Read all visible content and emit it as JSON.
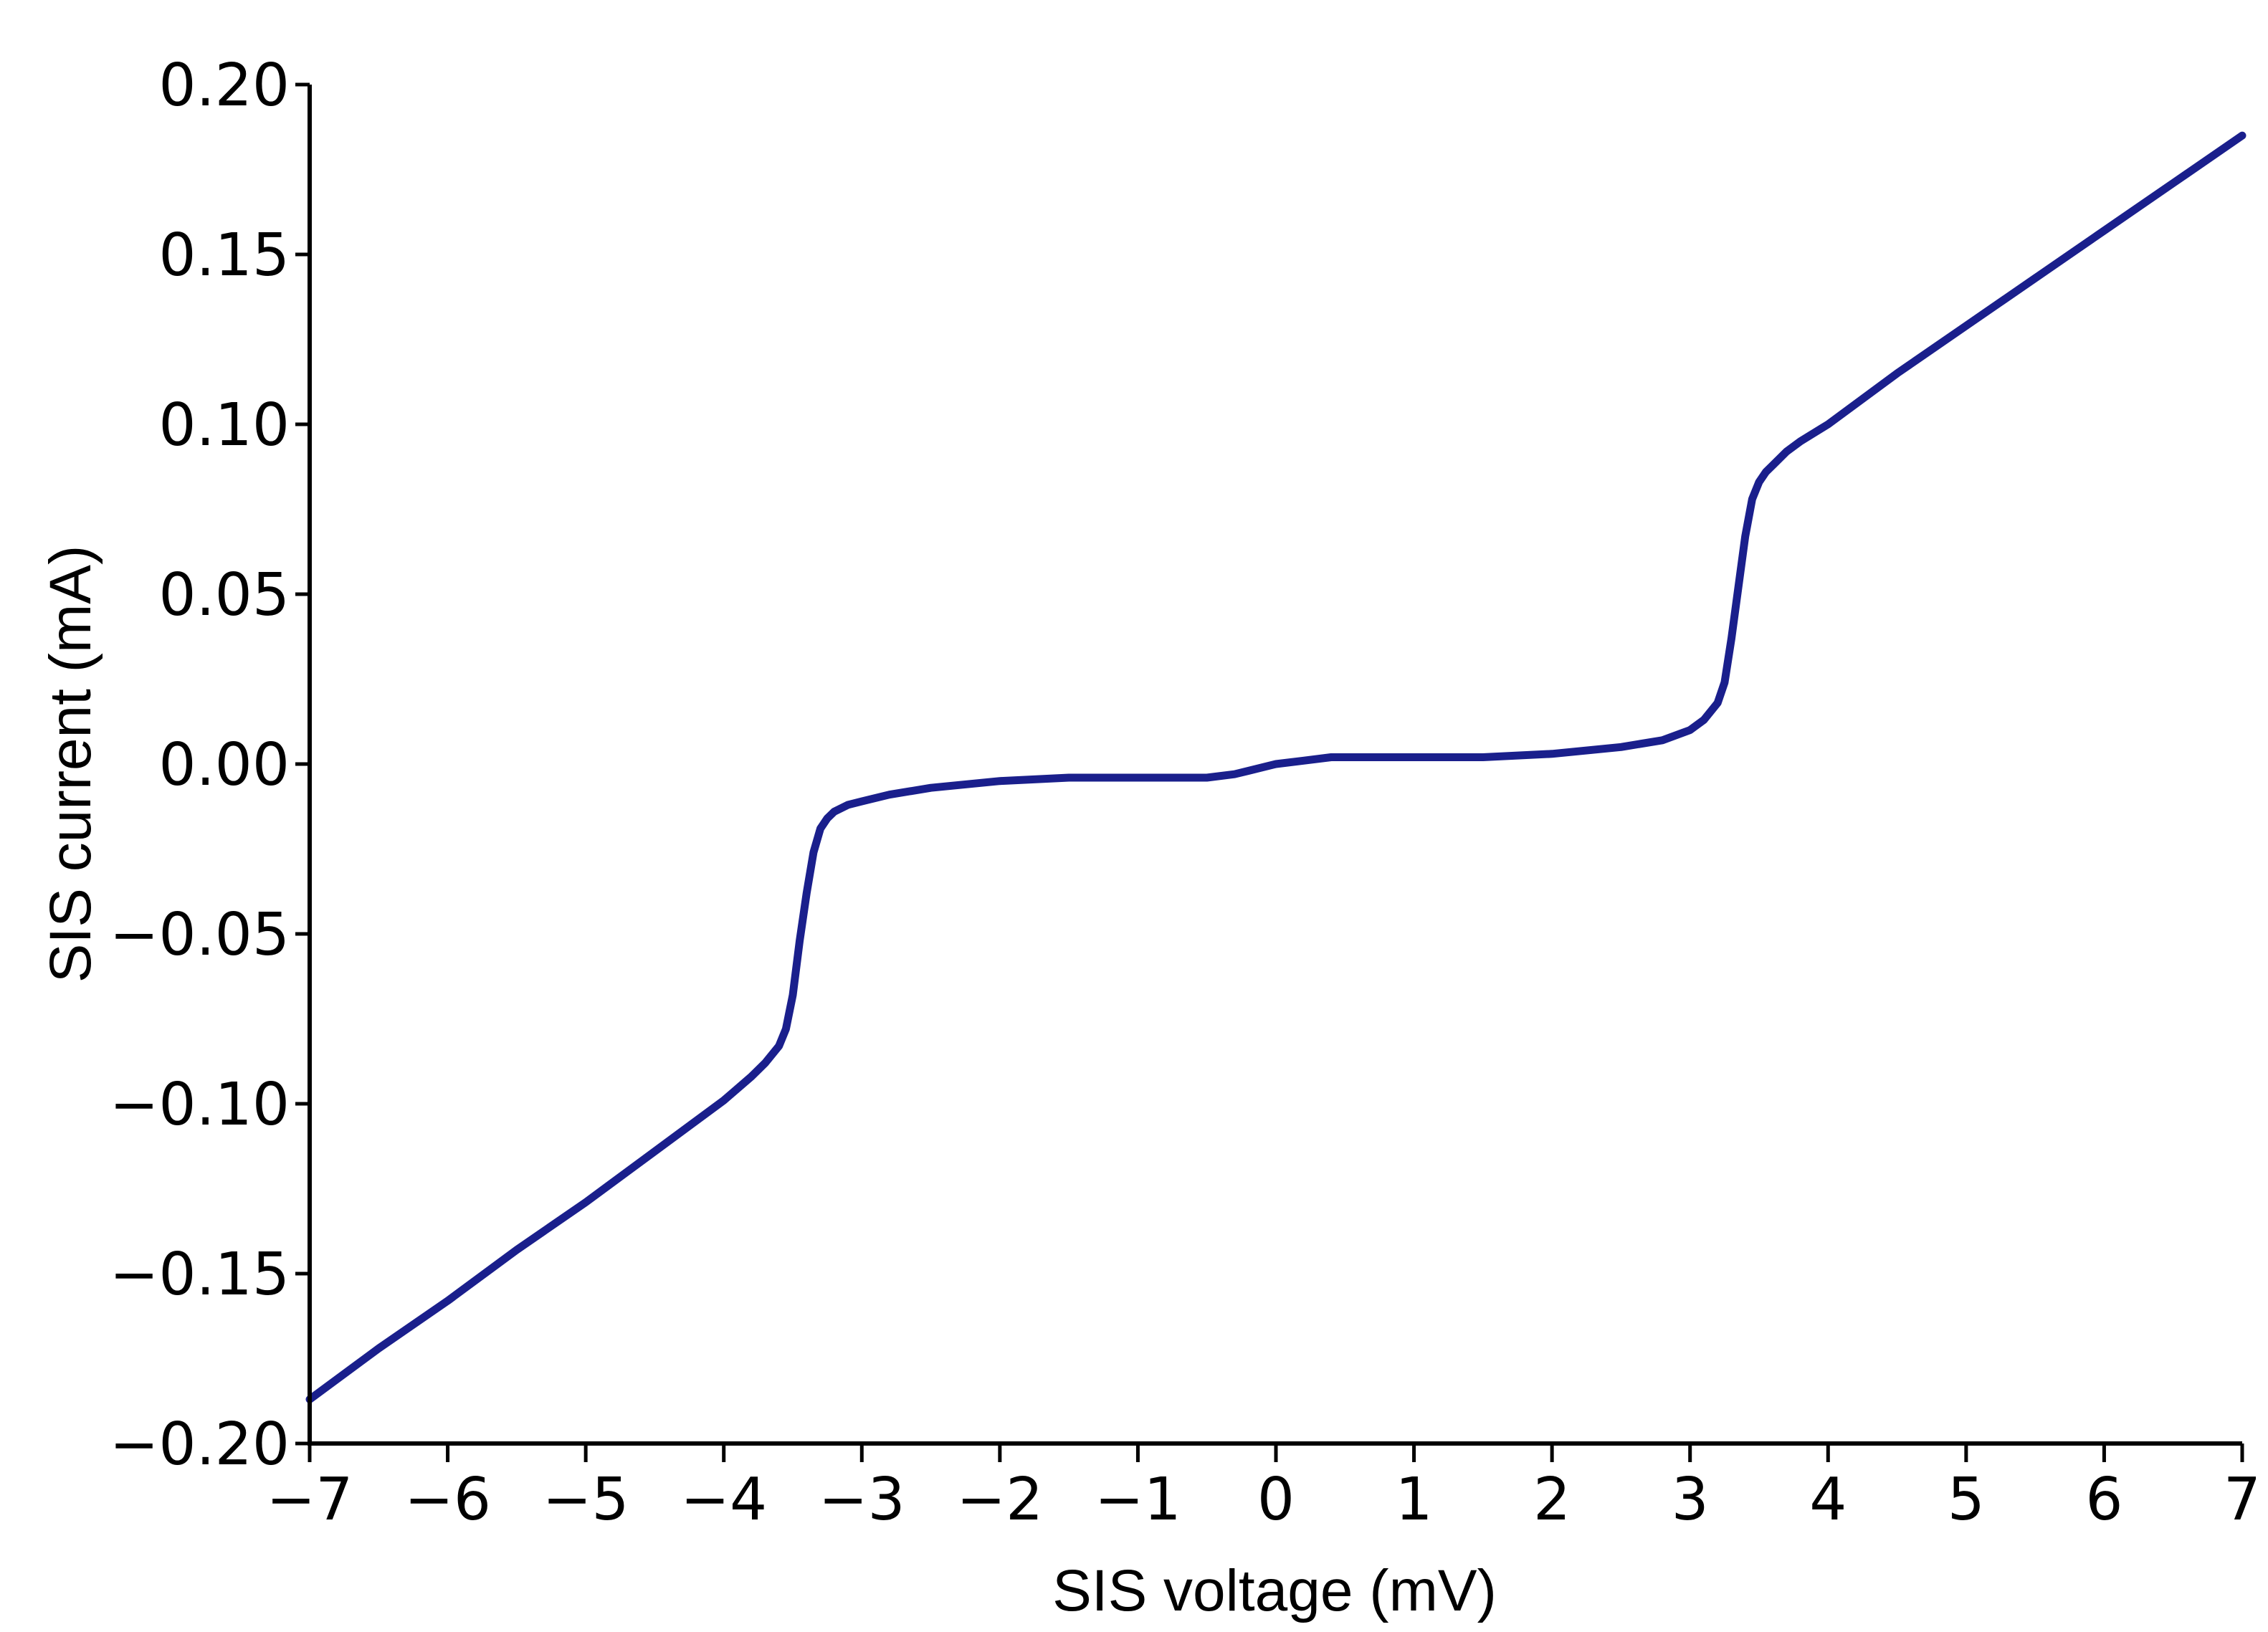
{
  "chart_data": {
    "type": "line",
    "title": "",
    "xlabel": "SIS voltage (mV)",
    "ylabel": "SIS current (mA)",
    "xlim": [
      -7,
      7
    ],
    "ylim": [
      -0.2,
      0.2
    ],
    "x_ticks": [
      -7,
      -6,
      -5,
      -4,
      -3,
      -2,
      -1,
      0,
      1,
      2,
      3,
      4,
      5,
      6,
      7
    ],
    "x_tick_labels": [
      "−7",
      "−6",
      "−5",
      "−4",
      "−3",
      "−2",
      "−1",
      "0",
      "1",
      "2",
      "3",
      "4",
      "5",
      "6",
      "7"
    ],
    "y_ticks": [
      -0.2,
      -0.15,
      -0.1,
      -0.05,
      0.0,
      0.05,
      0.1,
      0.15,
      0.2
    ],
    "y_tick_labels": [
      "−0.20",
      "−0.15",
      "−0.10",
      "−0.05",
      "0.00",
      "0.05",
      "0.10",
      "0.15",
      "0.20"
    ],
    "grid": false,
    "legend": "none",
    "series": [
      {
        "color": "#1a1f8c",
        "x": [
          -7.0,
          -6.5,
          -6.0,
          -5.5,
          -5.0,
          -4.5,
          -4.0,
          -3.8,
          -3.7,
          -3.6,
          -3.55,
          -3.5,
          -3.45,
          -3.4,
          -3.35,
          -3.3,
          -3.25,
          -3.2,
          -3.1,
          -3.0,
          -2.8,
          -2.5,
          -2.0,
          -1.5,
          -1.0,
          -0.5,
          -0.3,
          -0.2,
          0.0,
          0.2,
          0.4,
          0.5,
          1.0,
          1.5,
          2.0,
          2.5,
          2.8,
          3.0,
          3.1,
          3.2,
          3.25,
          3.3,
          3.35,
          3.4,
          3.45,
          3.5,
          3.55,
          3.6,
          3.7,
          3.8,
          4.0,
          4.5,
          5.0,
          5.5,
          6.0,
          6.5,
          7.0
        ],
        "y": [
          -0.187,
          -0.172,
          -0.158,
          -0.143,
          -0.129,
          -0.114,
          -0.099,
          -0.092,
          -0.088,
          -0.083,
          -0.078,
          -0.068,
          -0.052,
          -0.038,
          -0.026,
          -0.019,
          -0.016,
          -0.014,
          -0.012,
          -0.011,
          -0.009,
          -0.007,
          -0.005,
          -0.004,
          -0.004,
          -0.004,
          -0.003,
          -0.002,
          0.0,
          0.001,
          0.002,
          0.002,
          0.002,
          0.002,
          0.003,
          0.005,
          0.007,
          0.01,
          0.013,
          0.018,
          0.024,
          0.037,
          0.052,
          0.067,
          0.078,
          0.083,
          0.086,
          0.088,
          0.092,
          0.095,
          0.1,
          0.115,
          0.129,
          0.143,
          0.157,
          0.171,
          0.185
        ]
      }
    ]
  }
}
